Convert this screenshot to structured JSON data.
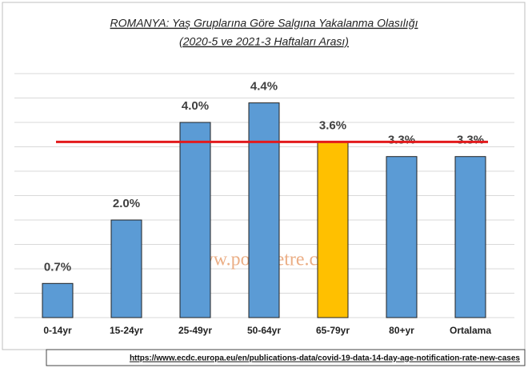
{
  "chart_data": {
    "type": "bar",
    "title": "ROMANYA: Yaş Gruplarına Göre Salgına Yakalanma Olasılığı",
    "subtitle": "(2020-5 ve 2021-3 Haftaları Arası)",
    "categories": [
      "0-14yr",
      "15-24yr",
      "25-49yr",
      "50-64yr",
      "65-79yr",
      "80+yr",
      "Ortalama"
    ],
    "values": [
      0.7,
      2.0,
      4.0,
      4.4,
      3.6,
      3.3,
      3.3
    ],
    "value_labels": [
      "0.7%",
      "2.0%",
      "4.0%",
      "4.4%",
      "3.6%",
      "3.3%",
      "3.3%"
    ],
    "colors": [
      "#5b9bd5",
      "#5b9bd5",
      "#5b9bd5",
      "#5b9bd5",
      "#ffc000",
      "#5b9bd5",
      "#5b9bd5"
    ],
    "ylim": [
      0,
      5
    ],
    "yticks": [
      0,
      0.5,
      1,
      1.5,
      2,
      2.5,
      3,
      3.5,
      4,
      4.5,
      5
    ],
    "grid": true,
    "reference_line": {
      "value": 3.6,
      "color": "#e31a1c"
    },
    "watermark": "www.polimetre.com",
    "source": "https://www.ecdc.europa.eu/en/publications-data/covid-19-data-14-day-age-notification-rate-new-cases"
  }
}
